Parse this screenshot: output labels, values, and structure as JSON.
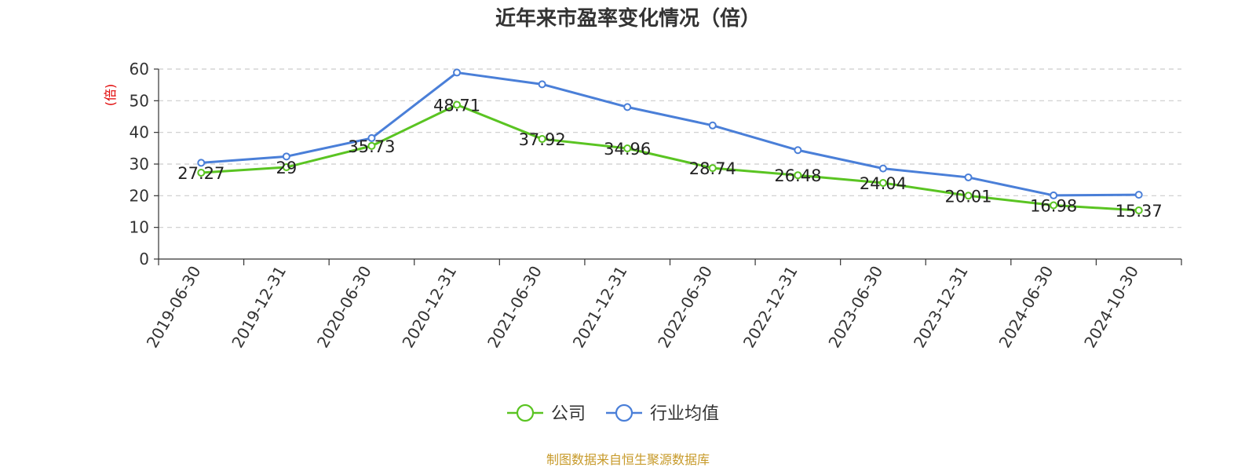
{
  "chart_data": {
    "type": "line",
    "title": "近年来市盈率变化情况（倍）",
    "ylabel": "(倍)",
    "xlabel": "",
    "ylim": [
      0,
      60
    ],
    "yticks": [
      0,
      10,
      20,
      30,
      40,
      50,
      60
    ],
    "categories": [
      "2019-06-30",
      "2019-12-31",
      "2020-06-30",
      "2020-12-31",
      "2021-06-30",
      "2021-12-31",
      "2022-06-30",
      "2022-12-31",
      "2023-06-30",
      "2023-12-31",
      "2024-06-30",
      "2024-10-30"
    ],
    "series": [
      {
        "name": "公司",
        "color": "#5ac422",
        "values": [
          27.27,
          29,
          35.73,
          48.71,
          37.92,
          34.96,
          28.74,
          26.48,
          24.04,
          20.01,
          16.98,
          15.37
        ],
        "labels": [
          "27.27",
          "29",
          "35.73",
          "48.71",
          "37.92",
          "34.96",
          "28.74",
          "26.48",
          "24.04",
          "20.01",
          "16.98",
          "15.37"
        ]
      },
      {
        "name": "行业均值",
        "color": "#4a7fd8",
        "values": [
          30.4,
          32.4,
          38.2,
          58.9,
          55.2,
          48.0,
          42.2,
          34.4,
          28.6,
          25.8,
          20.1,
          20.3
        ]
      }
    ],
    "grid": true,
    "legend_position": "bottom-center"
  },
  "unit_color": "#e00000",
  "source": {
    "text": "制图数据来自恒生聚源数据库",
    "color": "#c79a2a"
  }
}
